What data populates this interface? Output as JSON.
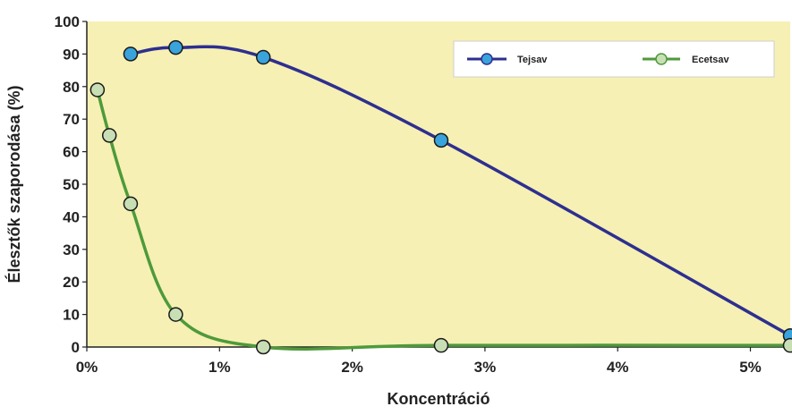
{
  "chart_data": {
    "type": "line",
    "title": "",
    "xlabel": "Koncentráció",
    "ylabel": "Élesztők szaporodása (%)",
    "xlim": [
      0,
      5.3
    ],
    "ylim": [
      0,
      100
    ],
    "x_ticks": [
      {
        "value": 0,
        "label": "0%"
      },
      {
        "value": 1,
        "label": "1%"
      },
      {
        "value": 2,
        "label": "2%"
      },
      {
        "value": 3,
        "label": "3%"
      },
      {
        "value": 4,
        "label": "4%"
      },
      {
        "value": 5,
        "label": "5%"
      }
    ],
    "y_ticks": [
      {
        "value": 0,
        "label": "0"
      },
      {
        "value": 10,
        "label": "10"
      },
      {
        "value": 20,
        "label": "20"
      },
      {
        "value": 30,
        "label": "30"
      },
      {
        "value": 40,
        "label": "40"
      },
      {
        "value": 50,
        "label": "50"
      },
      {
        "value": 60,
        "label": "60"
      },
      {
        "value": 70,
        "label": "70"
      },
      {
        "value": 80,
        "label": "80"
      },
      {
        "value": 90,
        "label": "90"
      },
      {
        "value": 100,
        "label": "100"
      }
    ],
    "grid": false,
    "legend_position": "top-right",
    "plot_background": "#f6f0b4",
    "series": [
      {
        "name": "Tejsav",
        "line_color": "#2e2f8f",
        "marker_color": "#3aa3dc",
        "points": [
          {
            "x": 0.33,
            "y": 90
          },
          {
            "x": 0.67,
            "y": 92
          },
          {
            "x": 1.33,
            "y": 89
          },
          {
            "x": 2.67,
            "y": 63.5
          },
          {
            "x": 5.3,
            "y": 3.5
          }
        ]
      },
      {
        "name": "Ecetsav",
        "line_color": "#4e9a3a",
        "marker_color": "#c8dfb5",
        "points": [
          {
            "x": 0.08,
            "y": 79
          },
          {
            "x": 0.17,
            "y": 65
          },
          {
            "x": 0.33,
            "y": 44
          },
          {
            "x": 0.67,
            "y": 10
          },
          {
            "x": 1.33,
            "y": 0
          },
          {
            "x": 2.67,
            "y": 0.5
          },
          {
            "x": 5.3,
            "y": 0.5
          }
        ]
      }
    ]
  }
}
